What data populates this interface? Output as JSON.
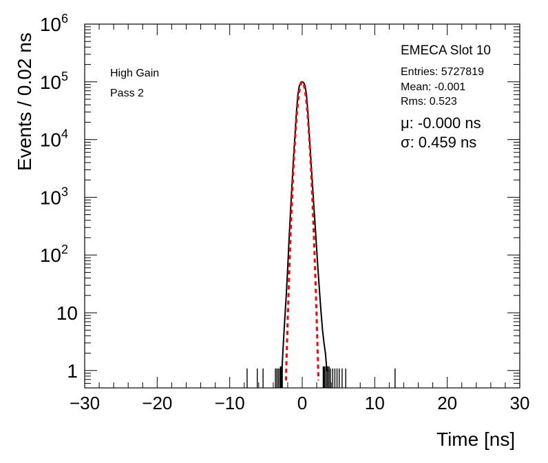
{
  "chart_data": {
    "type": "line",
    "title": "EMECA Slot 10",
    "xlabel": "Time [ns]",
    "ylabel": "Events / 0.02 ns",
    "xlim": [
      -30,
      30
    ],
    "ylim": [
      0.5,
      1000000
    ],
    "yscale": "log",
    "x_ticks": [
      "−30",
      "−20",
      "−10",
      "0",
      "10",
      "20",
      "30"
    ],
    "x_tick_values": [
      -30,
      -20,
      -10,
      0,
      10,
      20,
      30
    ],
    "y_ticks": [
      {
        "value": 1,
        "base": "1",
        "exp": ""
      },
      {
        "value": 10,
        "base": "10",
        "exp": ""
      },
      {
        "value": 100,
        "base": "10",
        "exp": "2"
      },
      {
        "value": 1000,
        "base": "10",
        "exp": "3"
      },
      {
        "value": 10000,
        "base": "10",
        "exp": "4"
      },
      {
        "value": 100000,
        "base": "10",
        "exp": "5"
      },
      {
        "value": 1000000,
        "base": "10",
        "exp": "6"
      }
    ],
    "annotations": {
      "gain": "High Gain",
      "pass": "Pass 2"
    },
    "stats": {
      "entries": "Entries: 5727819",
      "mean": "Mean: -0.001",
      "rms": "Rms: 0.523",
      "mu": "μ: -0.000 ns",
      "sigma": "σ: 0.459 ns"
    },
    "series": [
      {
        "style": "histogram",
        "color": "#000000",
        "x": [
          -2.8,
          -2.6,
          -2.4,
          -2.2,
          -2.0,
          -1.8,
          -1.6,
          -1.4,
          -1.2,
          -1.0,
          -0.8,
          -0.6,
          -0.4,
          -0.2,
          0.0,
          0.2,
          0.4,
          0.6,
          0.8,
          1.0,
          1.2,
          1.4,
          1.6,
          1.8,
          2.0,
          2.2,
          2.4,
          2.6,
          2.8,
          3.0,
          3.2,
          3.4,
          3.6
        ],
        "y": [
          1,
          3,
          8,
          20,
          60,
          200,
          600,
          1800,
          5000,
          12000,
          30000,
          60000,
          85000,
          98000,
          100000,
          97000,
          85000,
          58000,
          28000,
          11000,
          4500,
          1800,
          700,
          300,
          120,
          50,
          22,
          10,
          5,
          3,
          2,
          1,
          1
        ]
      },
      {
        "style": "fit",
        "color": "#ff0000",
        "mu": -0.0,
        "sigma": 0.459,
        "amplitude": 100000
      }
    ],
    "sparse_bins_x": [
      -7.6,
      -6.2,
      -5.4,
      -3.7,
      -3.5,
      -3.3,
      -3.1,
      -2.9,
      3.9,
      4.2,
      4.5,
      4.8,
      5.1,
      5.5,
      6.0,
      12.8
    ]
  }
}
